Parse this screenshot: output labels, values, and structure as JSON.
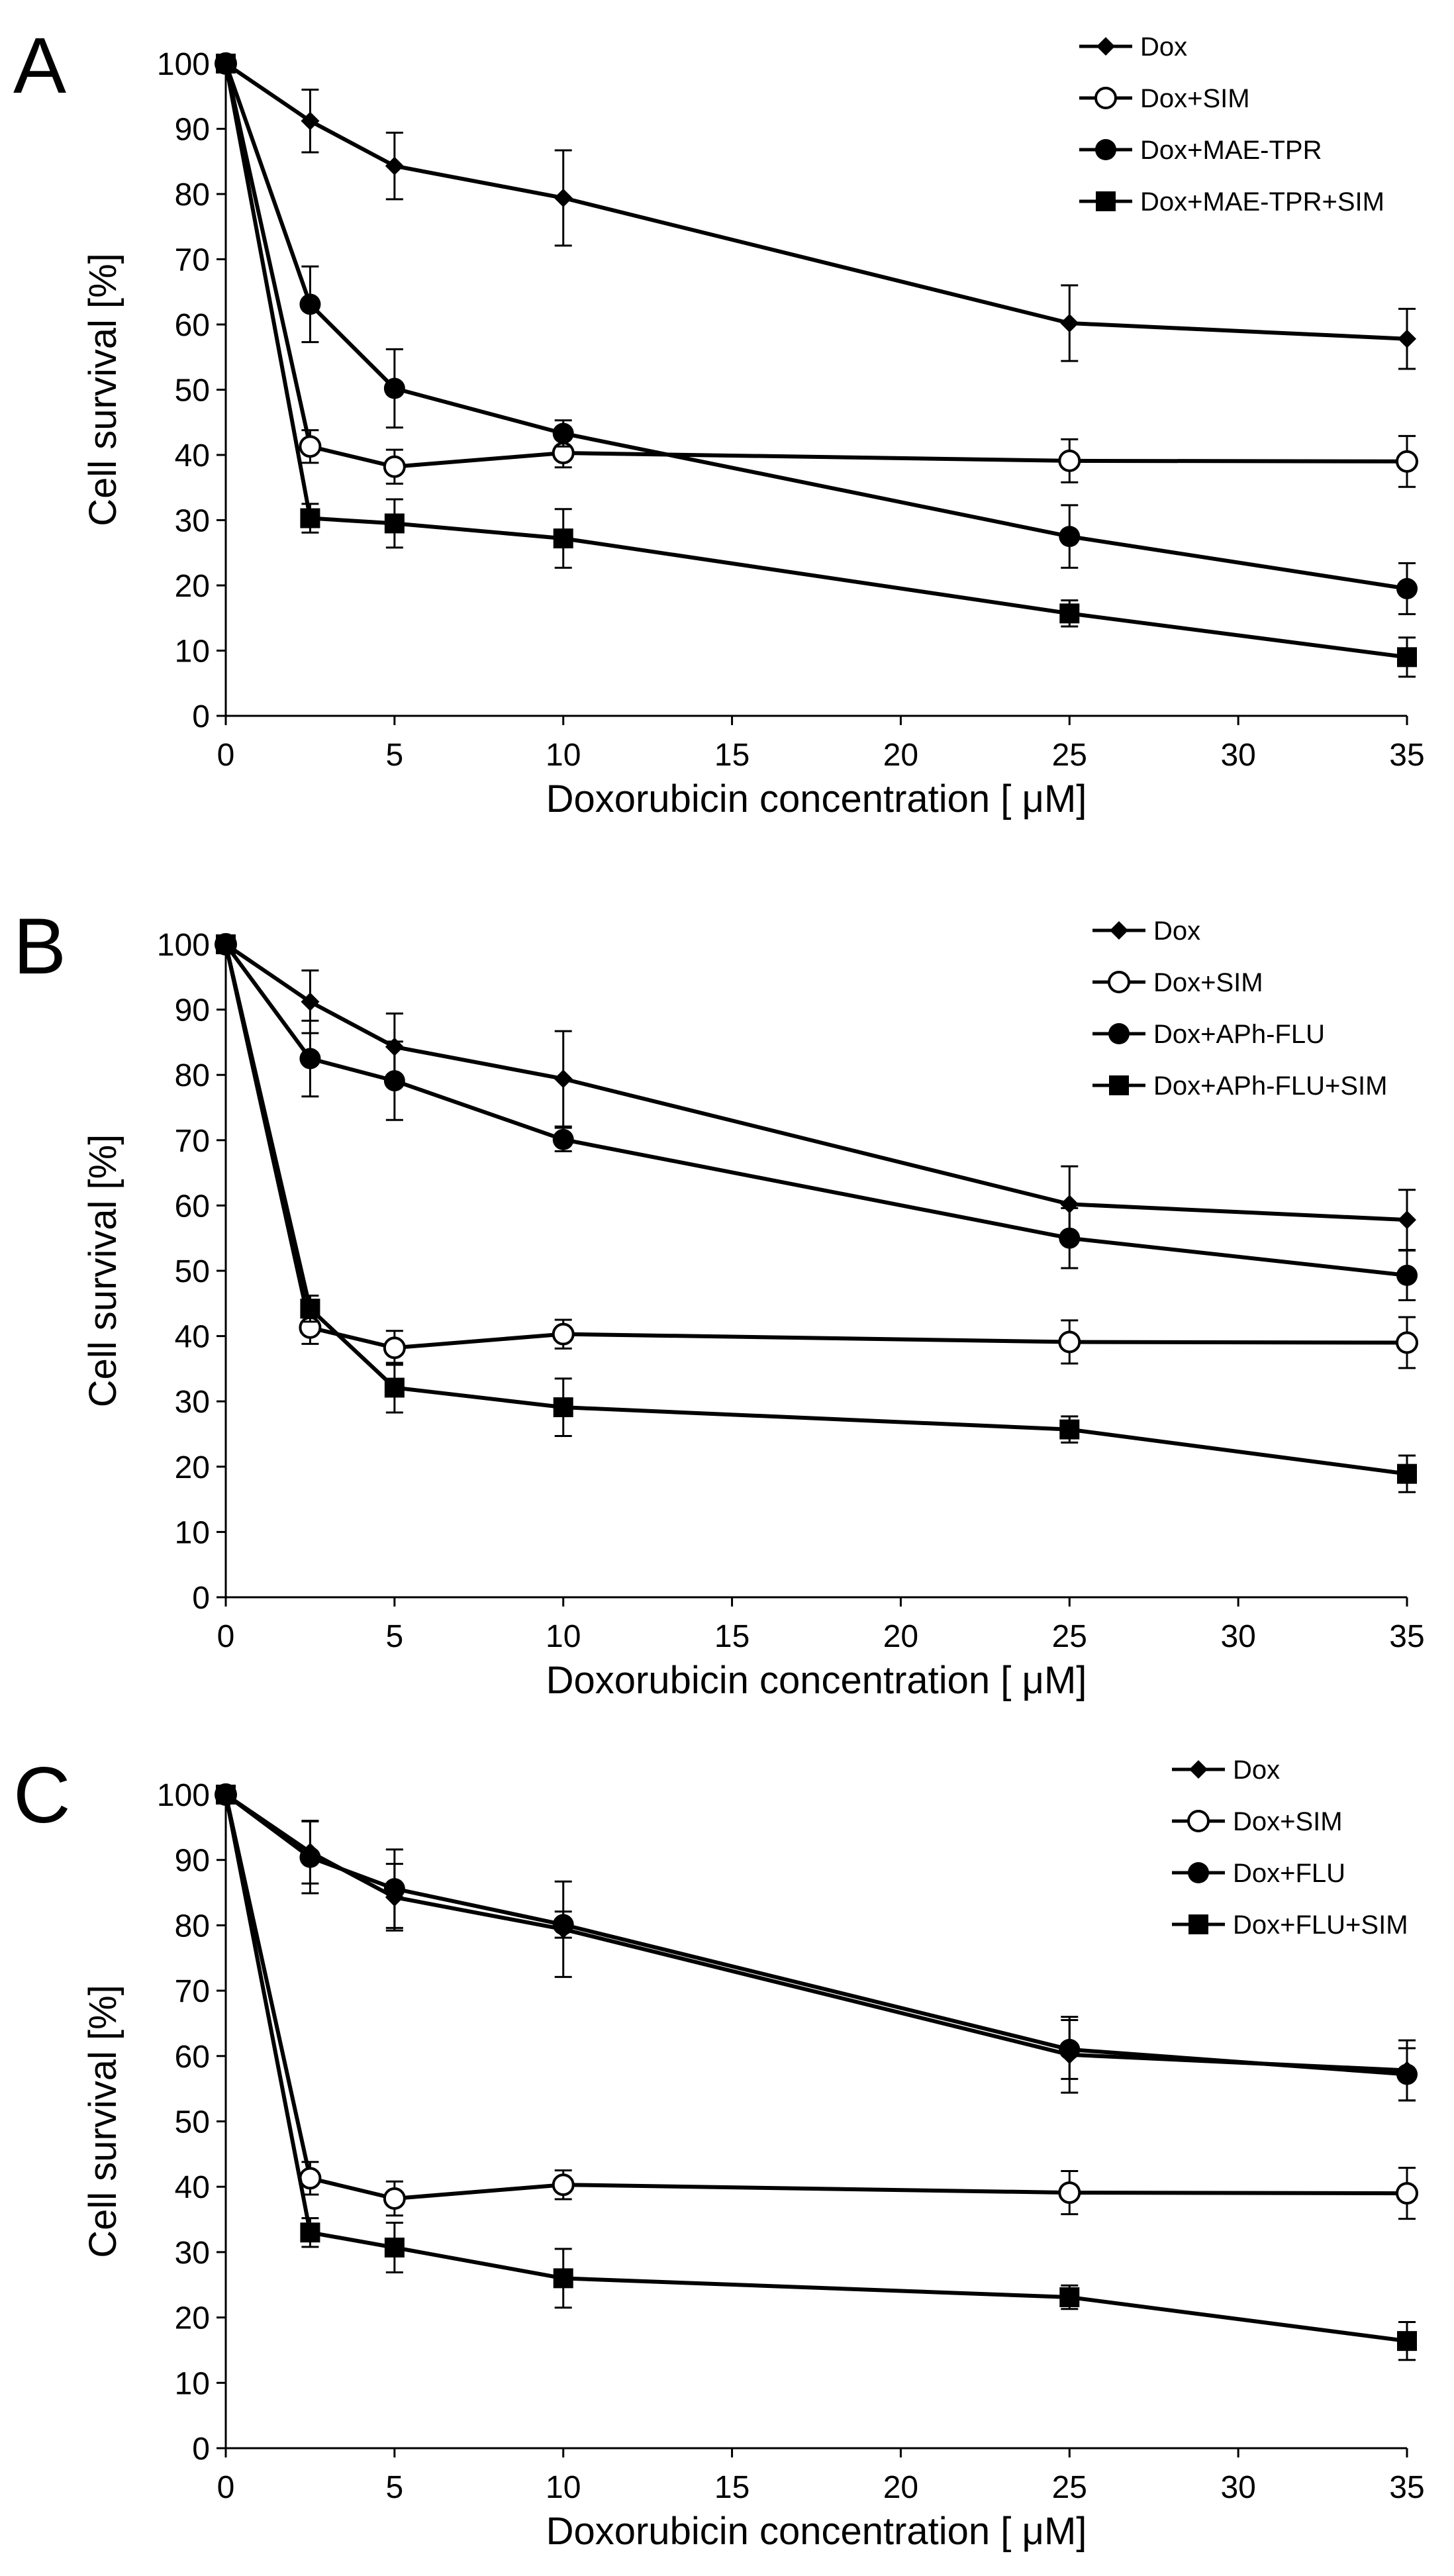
{
  "figure": {
    "legend_labels": [
      [
        "Dox",
        "Dox+SIM",
        "Dox+MAE-TPR",
        "Dox+MAE-TPR+SIM"
      ],
      [
        "Dox",
        "Dox+SIM",
        "Dox+APh-FLU",
        "Dox+APh-FLU+SIM"
      ],
      [
        "Dox",
        "Dox+SIM",
        "Dox+FLU",
        "Dox+FLU+SIM"
      ]
    ]
  },
  "chart_data": [
    {
      "type": "line",
      "panel": "A",
      "xlabel": "Doxorubicin concentration [ μM]",
      "ylabel": "Cell survival [%]",
      "xlim": [
        0,
        35
      ],
      "ylim": [
        0,
        100
      ],
      "xticks": [
        0,
        5,
        10,
        15,
        20,
        25,
        30,
        35
      ],
      "yticks": [
        0,
        10,
        20,
        30,
        40,
        50,
        60,
        70,
        80,
        90,
        100
      ],
      "x": [
        0,
        2.5,
        5,
        10,
        25,
        35
      ],
      "series": [
        {
          "name": "Dox",
          "marker": "diamond",
          "values": [
            100,
            91.2,
            84.3,
            79.4,
            60.2,
            57.8
          ],
          "errors": [
            0,
            4.8,
            5.1,
            7.3,
            5.8,
            4.6
          ]
        },
        {
          "name": "Dox+SIM",
          "marker": "open-circle",
          "values": [
            100,
            41.3,
            38.2,
            40.3,
            39.1,
            39.0
          ],
          "errors": [
            0,
            2.5,
            2.6,
            2.2,
            3.3,
            3.9
          ]
        },
        {
          "name": "Dox+MAE-TPR",
          "marker": "filled-circle",
          "values": [
            100,
            63.1,
            50.2,
            43.3,
            27.5,
            19.5
          ],
          "errors": [
            0,
            5.8,
            6.0,
            2.0,
            4.8,
            3.9
          ]
        },
        {
          "name": "Dox+MAE-TPR+SIM",
          "marker": "square",
          "values": [
            100,
            30.3,
            29.5,
            27.2,
            15.7,
            9.0
          ],
          "errors": [
            0,
            2.2,
            3.7,
            4.5,
            2.0,
            3.0
          ]
        }
      ]
    },
    {
      "type": "line",
      "panel": "B",
      "xlabel": "Doxorubicin concentration [ μM]",
      "ylabel": "Cell survival [%]",
      "xlim": [
        0,
        35
      ],
      "ylim": [
        0,
        100
      ],
      "xticks": [
        0,
        5,
        10,
        15,
        20,
        25,
        30,
        35
      ],
      "yticks": [
        0,
        10,
        20,
        30,
        40,
        50,
        60,
        70,
        80,
        90,
        100
      ],
      "x": [
        0,
        2.5,
        5,
        10,
        25,
        35
      ],
      "series": [
        {
          "name": "Dox",
          "marker": "diamond",
          "values": [
            100,
            91.2,
            84.3,
            79.4,
            60.2,
            57.8
          ],
          "errors": [
            0,
            4.8,
            5.1,
            7.3,
            5.8,
            4.6
          ]
        },
        {
          "name": "Dox+SIM",
          "marker": "open-circle",
          "values": [
            100,
            41.3,
            38.2,
            40.3,
            39.1,
            39.0
          ],
          "errors": [
            0,
            2.5,
            2.6,
            2.2,
            3.3,
            3.9
          ]
        },
        {
          "name": "Dox+APh-FLU",
          "marker": "filled-circle",
          "values": [
            100,
            82.5,
            79.1,
            70.1,
            55.0,
            49.3
          ],
          "errors": [
            0,
            5.8,
            6.0,
            1.8,
            4.6,
            3.8
          ]
        },
        {
          "name": "Dox+APh-FLU+SIM",
          "marker": "square",
          "values": [
            100,
            44.2,
            32.1,
            29.1,
            25.7,
            18.9
          ],
          "errors": [
            0,
            2.0,
            3.8,
            4.4,
            2.0,
            2.8
          ]
        }
      ]
    },
    {
      "type": "line",
      "panel": "C",
      "xlabel": "Doxorubicin concentration [ μM]",
      "ylabel": "Cell survival [%]",
      "xlim": [
        0,
        35
      ],
      "ylim": [
        0,
        100
      ],
      "xticks": [
        0,
        5,
        10,
        15,
        20,
        25,
        30,
        35
      ],
      "yticks": [
        0,
        10,
        20,
        30,
        40,
        50,
        60,
        70,
        80,
        90,
        100
      ],
      "x": [
        0,
        2.5,
        5,
        10,
        25,
        35
      ],
      "series": [
        {
          "name": "Dox",
          "marker": "diamond",
          "values": [
            100,
            91.2,
            84.3,
            79.4,
            60.2,
            57.8
          ],
          "errors": [
            0,
            4.8,
            5.1,
            7.3,
            5.8,
            4.6
          ]
        },
        {
          "name": "Dox+SIM",
          "marker": "open-circle",
          "values": [
            100,
            41.3,
            38.2,
            40.3,
            39.1,
            39.0
          ],
          "errors": [
            0,
            2.5,
            2.6,
            2.2,
            3.3,
            3.9
          ]
        },
        {
          "name": "Dox+FLU",
          "marker": "filled-circle",
          "values": [
            100,
            90.4,
            85.6,
            80.1,
            61.0,
            57.2
          ],
          "errors": [
            0,
            5.5,
            6.0,
            2.0,
            4.5,
            4.0
          ]
        },
        {
          "name": "Dox+FLU+SIM",
          "marker": "square",
          "values": [
            100,
            33.0,
            30.7,
            26.0,
            23.1,
            16.4
          ],
          "errors": [
            0,
            2.2,
            3.8,
            4.5,
            1.8,
            2.9
          ]
        }
      ]
    }
  ]
}
